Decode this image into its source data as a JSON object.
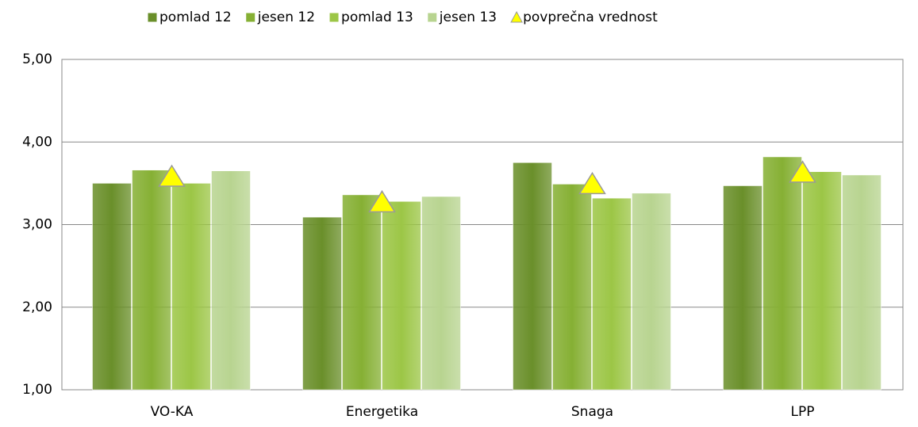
{
  "chart_data": {
    "type": "bar",
    "categories": [
      "VO-KA",
      "Energetika",
      "Snaga",
      "LPP"
    ],
    "series": [
      {
        "name": "pomlad 12",
        "color": "#6a8f2a",
        "values": [
          3.5,
          3.09,
          3.75,
          3.47
        ]
      },
      {
        "name": "jesen 12",
        "color": "#86b034",
        "values": [
          3.66,
          3.36,
          3.49,
          3.82
        ]
      },
      {
        "name": "pomlad 13",
        "color": "#9cc646",
        "values": [
          3.5,
          3.28,
          3.32,
          3.64
        ]
      },
      {
        "name": "jesen 13",
        "color": "#b8d490",
        "values": [
          3.65,
          3.34,
          3.38,
          3.6
        ]
      },
      {
        "name": "povprečna vrednost",
        "color": "#ffff00",
        "marker": "triangle",
        "values": [
          3.58,
          3.27,
          3.49,
          3.63
        ]
      }
    ],
    "ylim": [
      1,
      5
    ],
    "yticks": [
      {
        "value": 1,
        "label": "1,00"
      },
      {
        "value": 2,
        "label": "2,00"
      },
      {
        "value": 3,
        "label": "3,00"
      },
      {
        "value": 4,
        "label": "4,00"
      },
      {
        "value": 5,
        "label": "5,00"
      }
    ],
    "grid": true,
    "legend": "top"
  }
}
